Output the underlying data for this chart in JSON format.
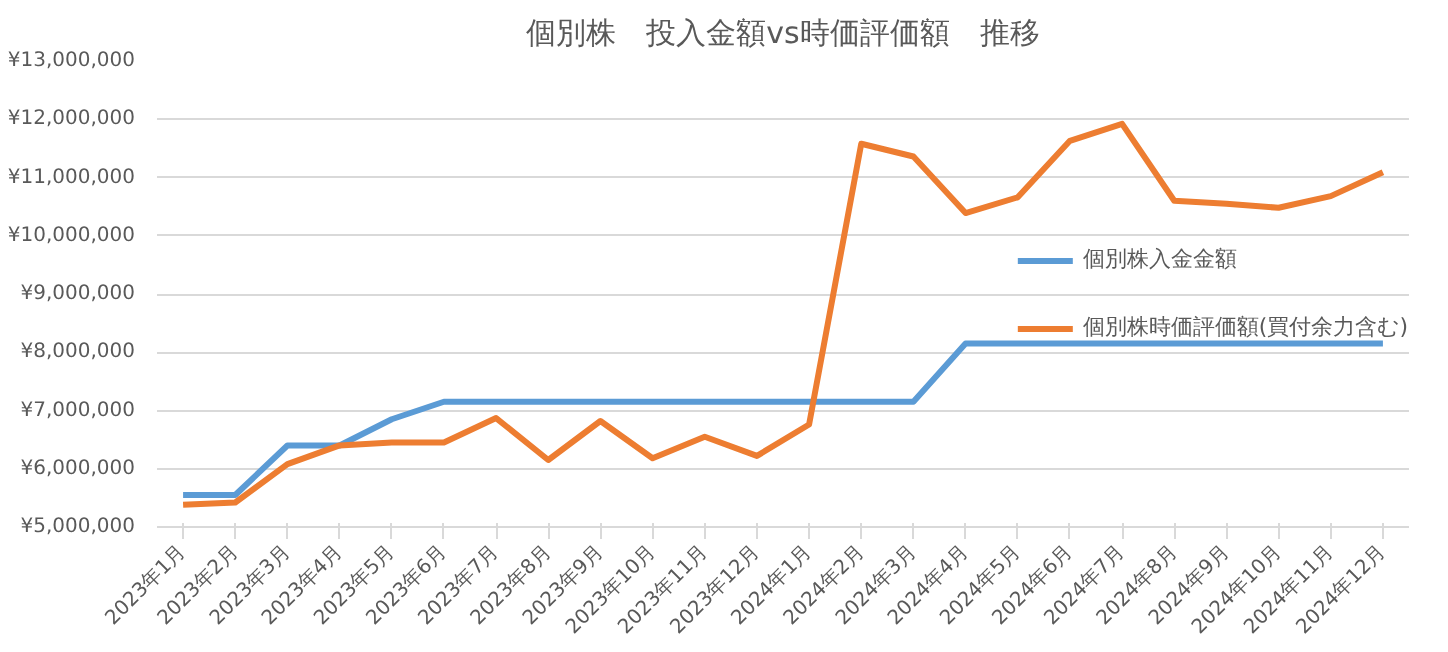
{
  "chart_data": {
    "type": "line",
    "title": "個別株　投入金額vs時価評価額　推移",
    "categories": [
      "2023年1月",
      "2023年2月",
      "2023年3月",
      "2023年4月",
      "2023年5月",
      "2023年6月",
      "2023年7月",
      "2023年8月",
      "2023年9月",
      "2023年10月",
      "2023年11月",
      "2023年12月",
      "2024年1月",
      "2024年2月",
      "2024年3月",
      "2024年4月",
      "2024年5月",
      "2024年6月",
      "2024年7月",
      "2024年8月",
      "2024年9月",
      "2024年10月",
      "2024年11月",
      "2024年12月"
    ],
    "series": [
      {
        "name": "個別株入金金額",
        "color": "#5b9bd5",
        "values": [
          5550000,
          5550000,
          6400000,
          6400000,
          6850000,
          7150000,
          7150000,
          7150000,
          7150000,
          7150000,
          7150000,
          7150000,
          7150000,
          7150000,
          7150000,
          8150000,
          8150000,
          8150000,
          8150000,
          8150000,
          8150000,
          8150000,
          8150000,
          8150000
        ]
      },
      {
        "name": "個別株時価評価額(買付余力含む)",
        "color": "#ed7d31",
        "values": [
          5380000,
          5420000,
          6080000,
          6400000,
          6450000,
          6450000,
          6870000,
          6150000,
          6820000,
          6180000,
          6550000,
          6220000,
          6760000,
          11580000,
          11360000,
          10390000,
          10660000,
          11630000,
          11920000,
          10600000,
          10550000,
          10480000,
          10680000,
          11090000
        ]
      }
    ],
    "ylim": [
      5000000,
      13000000
    ],
    "yticks": [
      {
        "value": 5000000,
        "label": "¥5,000,000"
      },
      {
        "value": 6000000,
        "label": "¥6,000,000"
      },
      {
        "value": 7000000,
        "label": "¥7,000,000"
      },
      {
        "value": 8000000,
        "label": "¥8,000,000"
      },
      {
        "value": 9000000,
        "label": "¥9,000,000"
      },
      {
        "value": 10000000,
        "label": "¥10,000,000"
      },
      {
        "value": 11000000,
        "label": "¥11,000,000"
      },
      {
        "value": 12000000,
        "label": "¥12,000,000"
      },
      {
        "value": 13000000,
        "label": "¥13,000,000"
      }
    ],
    "grid": "y",
    "legend": "right",
    "marker": "none",
    "line_style": "solid"
  }
}
